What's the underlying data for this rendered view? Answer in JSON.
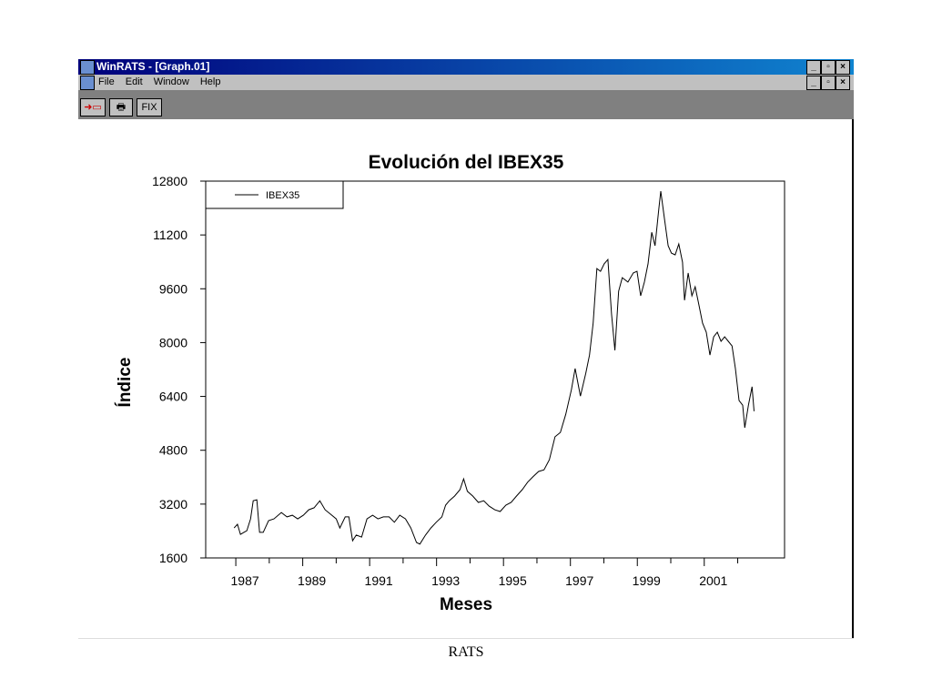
{
  "window": {
    "title": "WinRATS - [Graph.01]"
  },
  "menu": [
    "File",
    "Edit",
    "Window",
    "Help"
  ],
  "toolbar": {
    "buttons": [
      "FIX"
    ]
  },
  "chart_data": {
    "type": "line",
    "title": "Evolución del IBEX35",
    "xlabel": "Meses",
    "ylabel": "Índice",
    "x": [
      1986.95,
      1987.05,
      1987.14,
      1987.33,
      1987.44,
      1987.52,
      1987.63,
      1987.71,
      1987.82,
      1987.98,
      1988.14,
      1988.36,
      1988.53,
      1988.69,
      1988.85,
      1989.02,
      1989.18,
      1989.34,
      1989.51,
      1989.67,
      1989.83,
      1990.0,
      1990.11,
      1990.27,
      1990.38,
      1990.49,
      1990.6,
      1990.76,
      1990.92,
      1991.09,
      1991.25,
      1991.41,
      1991.58,
      1991.74,
      1991.9,
      1992.07,
      1992.23,
      1992.4,
      1992.5,
      1992.67,
      1992.83,
      1992.99,
      1993.16,
      1993.27,
      1993.38,
      1993.54,
      1993.7,
      1993.81,
      1993.92,
      1994.08,
      1994.25,
      1994.41,
      1994.57,
      1994.74,
      1994.9,
      1995.07,
      1995.23,
      1995.39,
      1995.56,
      1995.72,
      1995.88,
      1996.05,
      1996.21,
      1996.37,
      1996.54,
      1996.7,
      1996.86,
      1997.03,
      1997.14,
      1997.3,
      1997.46,
      1997.57,
      1997.68,
      1997.79,
      1997.9,
      1998.01,
      1998.12,
      1998.23,
      1998.33,
      1998.44,
      1998.55,
      1998.72,
      1998.88,
      1998.99,
      1999.1,
      1999.21,
      1999.32,
      1999.43,
      1999.53,
      1999.64,
      1999.7,
      1999.81,
      1999.92,
      2000.02,
      2000.13,
      2000.24,
      2000.35,
      2000.41,
      2000.52,
      2000.63,
      2000.73,
      2000.84,
      2000.95,
      2001.06,
      2001.17,
      2001.28,
      2001.39,
      2001.5,
      2001.61,
      2001.72,
      2001.83,
      2001.93,
      2002.04,
      2002.15,
      2002.21,
      2002.32,
      2002.43,
      2002.49
    ],
    "series": [
      {
        "name": "IBEX35",
        "color": "#000000",
        "values": [
          2490,
          2600,
          2300,
          2410,
          2760,
          3300,
          3330,
          2360,
          2360,
          2710,
          2760,
          2950,
          2820,
          2870,
          2760,
          2870,
          3030,
          3090,
          3300,
          3030,
          2900,
          2760,
          2490,
          2820,
          2820,
          2110,
          2280,
          2220,
          2760,
          2870,
          2760,
          2820,
          2820,
          2660,
          2870,
          2760,
          2490,
          2060,
          2010,
          2280,
          2490,
          2660,
          2820,
          3170,
          3300,
          3440,
          3630,
          3950,
          3580,
          3440,
          3250,
          3300,
          3140,
          3030,
          2980,
          3170,
          3250,
          3440,
          3630,
          3850,
          4010,
          4170,
          4220,
          4520,
          5200,
          5330,
          5870,
          6600,
          7230,
          6410,
          7090,
          7630,
          8580,
          10200,
          10120,
          10340,
          10470,
          8850,
          7770,
          9530,
          9930,
          9800,
          10070,
          10120,
          9390,
          9800,
          10340,
          11280,
          10880,
          11960,
          12500,
          11690,
          10880,
          10660,
          10610,
          10930,
          10390,
          9260,
          10070,
          9390,
          9660,
          9120,
          8580,
          8310,
          7630,
          8170,
          8310,
          8040,
          8170,
          8040,
          7900,
          7230,
          6280,
          6140,
          5470,
          6140,
          6690,
          5960
        ]
      }
    ],
    "xlim": [
      1986.1,
      2003.4
    ],
    "xticks": [
      1987,
      1989,
      1991,
      1993,
      1995,
      1997,
      1999,
      2001
    ],
    "xminorticks": [
      1988,
      1990,
      1992,
      1994,
      1996,
      1998,
      2000,
      2002
    ],
    "ylim": [
      1600,
      12800
    ],
    "yticks": [
      1600,
      3200,
      4800,
      6400,
      8000,
      9600,
      11200,
      12800
    ],
    "legend": "upper left"
  },
  "footer": "RATS"
}
